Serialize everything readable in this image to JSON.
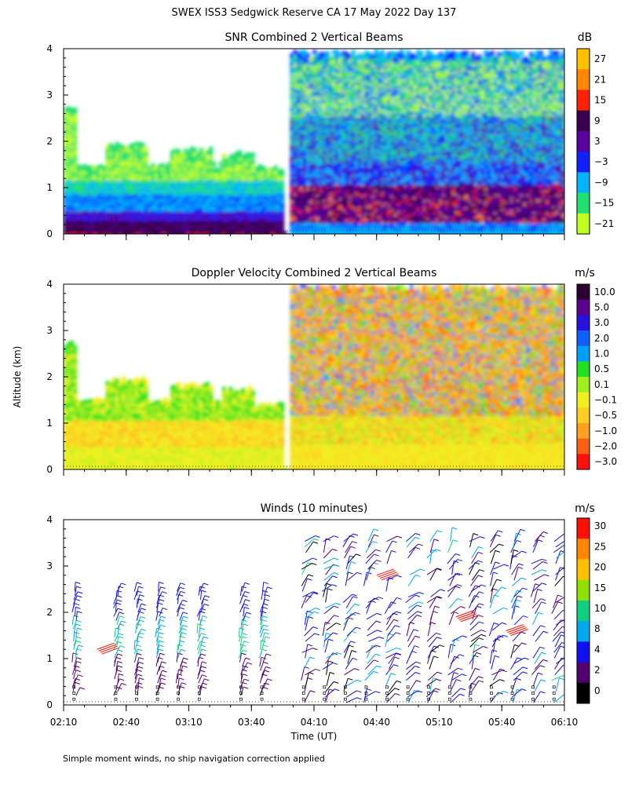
{
  "page": {
    "title": "SWEX ISS3 Sedgwick Reserve CA  17 May 2022 Day 137",
    "ylabel": "Altitude (km)",
    "xlabel": "Time (UT)",
    "footnote": "Simple moment winds, no ship navigation correction applied",
    "x_ticks": [
      "02:10",
      "02:40",
      "03:10",
      "03:40",
      "04:10",
      "04:40",
      "05:10",
      "05:40",
      "06:10"
    ],
    "y_ticks": [
      "0",
      "1",
      "2",
      "3",
      "4"
    ]
  },
  "chart_data": [
    {
      "type": "heatmap",
      "title": "SNR Combined 2 Vertical Beams",
      "unit": "dB",
      "xlim": [
        "02:10",
        "06:10"
      ],
      "ylim": [
        0,
        4
      ],
      "colorbar_labels": [
        "27",
        "21",
        "15",
        "9",
        "3",
        "−3",
        "−9",
        "−15",
        "−21"
      ],
      "colorbar_colors": [
        "#ffc000",
        "#ff8800",
        "#ff2200",
        "#3a0050",
        "#5a00a0",
        "#1020ff",
        "#00b4ff",
        "#22e070",
        "#c0ff20"
      ],
      "description_of_field": [
        {
          "time_range": [
            "02:10",
            "03:55"
          ],
          "alt_km": [
            0.0,
            0.35
          ],
          "snr": "9 to 15"
        },
        {
          "time_range": [
            "02:10",
            "03:55"
          ],
          "alt_km": [
            0.35,
            0.9
          ],
          "snr": "-9 to 3"
        },
        {
          "time_range": [
            "02:10",
            "03:55"
          ],
          "alt_km": [
            0.9,
            1.8
          ],
          "snr": "-21 to -9"
        },
        {
          "time_range": [
            "04:00",
            "06:10"
          ],
          "alt_km": [
            0.3,
            1.2
          ],
          "snr": "9 to 15"
        },
        {
          "time_range": [
            "04:00",
            "06:10"
          ],
          "alt_km": [
            1.2,
            3.8
          ],
          "snr": "-21 to 9"
        }
      ]
    },
    {
      "type": "heatmap",
      "title": "Doppler Velocity Combined 2 Vertical Beams",
      "unit": "m/s",
      "xlim": [
        "02:10",
        "06:10"
      ],
      "ylim": [
        0,
        4
      ],
      "colorbar_labels": [
        "10.0",
        "5.0",
        "3.0",
        "2.0",
        "1.0",
        "0.5",
        "0.1",
        "−0.1",
        "−0.5",
        "−1.0",
        "−2.0",
        "−3.0"
      ],
      "colorbar_colors": [
        "#2a0030",
        "#5a0090",
        "#2810e0",
        "#1060ff",
        "#00a0ff",
        "#20e020",
        "#a0f020",
        "#f0f020",
        "#ffd020",
        "#ffa020",
        "#ff6010",
        "#ff1010"
      ],
      "description_of_field": [
        {
          "time_range": [
            "02:10",
            "03:55"
          ],
          "alt_km": [
            0.0,
            1.3
          ],
          "velocity": "-0.5 to -0.1"
        },
        {
          "time_range": [
            "04:00",
            "06:10"
          ],
          "alt_km": [
            0.0,
            1.0
          ],
          "velocity": "-1.0 to -0.1"
        },
        {
          "time_range": [
            "04:00",
            "06:10"
          ],
          "alt_km": [
            1.0,
            4.0
          ],
          "velocity": "-2.0 to 1.0"
        }
      ]
    },
    {
      "type": "scatter",
      "title": "Winds (10 minutes)",
      "unit": "m/s",
      "xlim": [
        "02:10",
        "06:10"
      ],
      "ylim": [
        0,
        4
      ],
      "colorbar_labels": [
        "30",
        "25",
        "20",
        "15",
        "10",
        "8",
        "4",
        "2",
        "0"
      ],
      "colorbar_colors": [
        "#ff1000",
        "#ff8800",
        "#ffc000",
        "#90e000",
        "#10d080",
        "#00a8f0",
        "#1010f0",
        "#500070",
        "#000000"
      ],
      "profile_times": [
        "02:15",
        "02:35",
        "02:45",
        "02:55",
        "03:05",
        "03:15",
        "03:35",
        "03:45",
        "04:05",
        "04:15",
        "04:25",
        "04:35",
        "04:45",
        "04:55",
        "05:05",
        "05:15",
        "05:25",
        "05:35",
        "05:45",
        "05:55",
        "06:05"
      ]
    }
  ]
}
